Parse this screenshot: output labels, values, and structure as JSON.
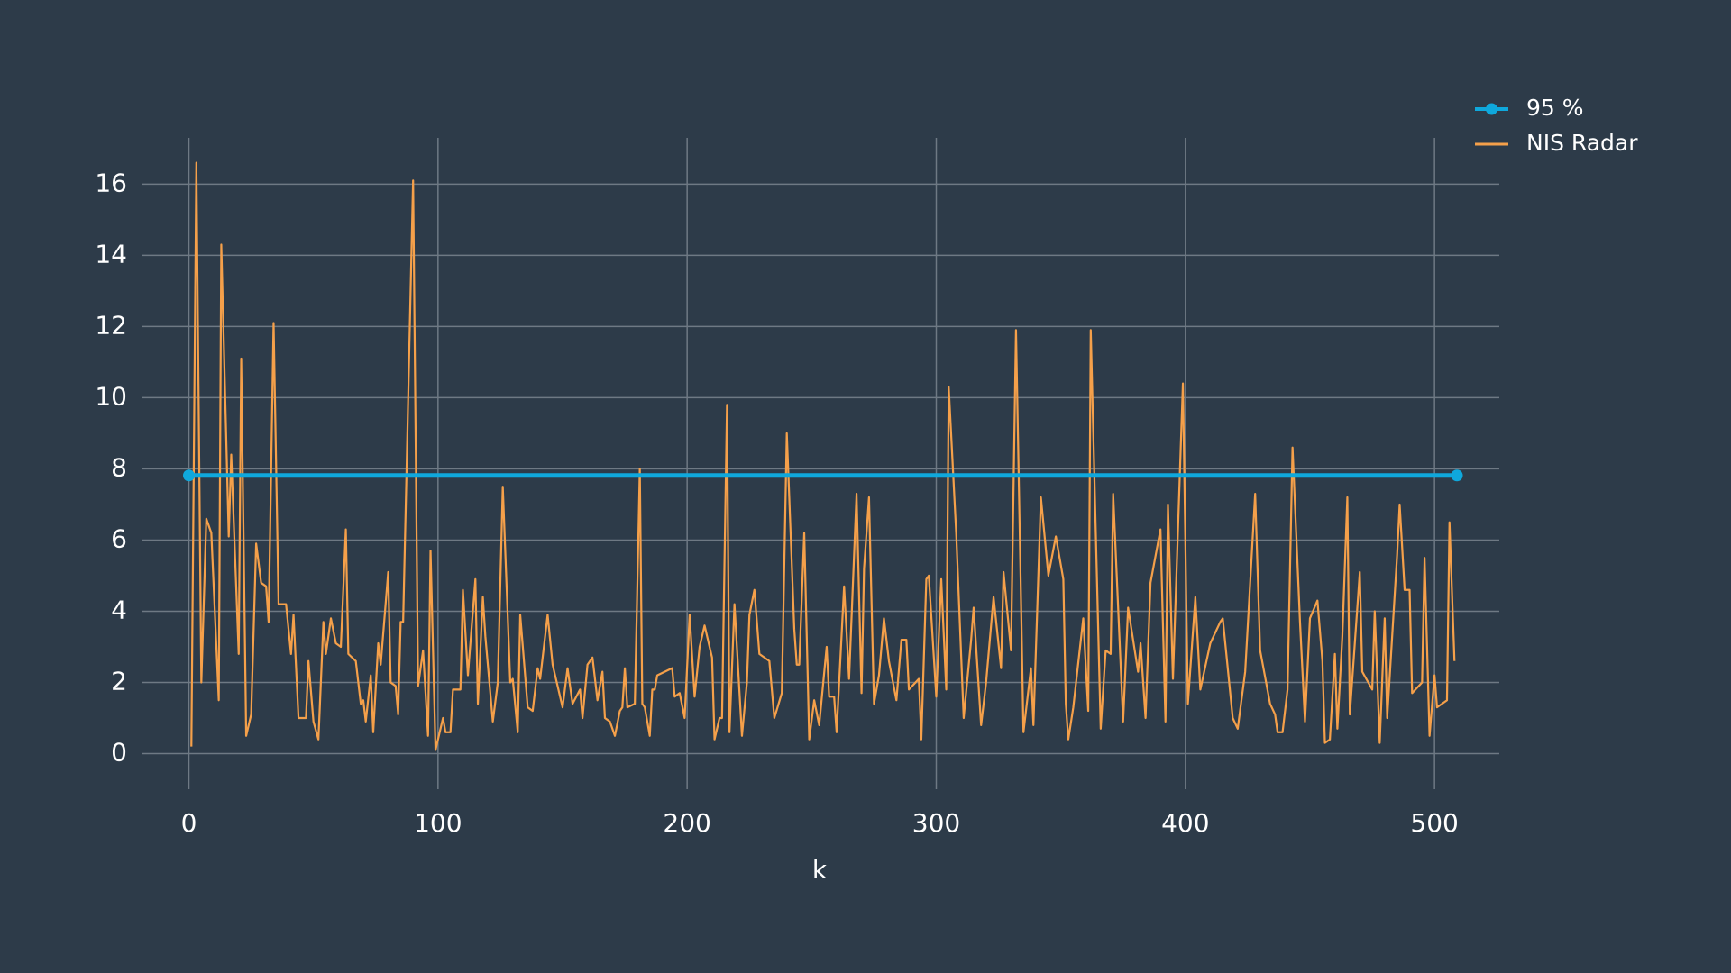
{
  "chart_data": {
    "type": "line",
    "x_label": "k",
    "xlim": [
      -19,
      526
    ],
    "xticks": [
      0,
      100,
      200,
      300,
      400,
      500
    ],
    "ylim": [
      -1.0,
      17.3
    ],
    "yticks": [
      0,
      2,
      4,
      6,
      8,
      10,
      12,
      14,
      16
    ],
    "grid": true,
    "legend": "top-right",
    "series": [
      {
        "name": "95 %",
        "color": "#0fa8dc",
        "markers": true,
        "x": [
          0,
          509
        ],
        "values": [
          7.815,
          7.815
        ]
      },
      {
        "name": "NIS Radar",
        "color": "#f5a04a",
        "markers": false,
        "x": [
          1,
          3,
          5,
          7,
          9,
          12,
          13,
          16,
          17,
          20,
          21,
          23,
          25,
          27,
          29,
          31,
          32,
          34,
          36,
          39,
          41,
          42,
          44,
          47,
          48,
          50,
          52,
          54,
          55,
          57,
          59,
          61,
          63,
          64,
          67,
          69,
          70,
          71,
          73,
          74,
          76,
          77,
          80,
          81,
          83,
          84,
          85,
          86,
          90,
          92,
          94,
          96,
          97,
          99,
          102,
          103,
          105,
          106,
          109,
          110,
          112,
          115,
          116,
          118,
          119,
          122,
          124,
          126,
          129,
          130,
          132,
          133,
          136,
          138,
          140,
          141,
          144,
          146,
          147,
          150,
          152,
          154,
          157,
          158,
          160,
          162,
          164,
          166,
          167,
          169,
          171,
          173,
          174,
          175,
          176,
          179,
          181,
          182,
          183,
          185,
          186,
          187,
          188,
          194,
          195,
          197,
          199,
          201,
          203,
          205,
          207,
          210,
          211,
          213,
          214,
          216,
          217,
          219,
          222,
          224,
          225,
          227,
          229,
          233,
          235,
          238,
          240,
          243,
          244,
          245,
          247,
          249,
          251,
          253,
          256,
          257,
          259,
          260,
          263,
          265,
          268,
          270,
          271,
          273,
          275,
          277,
          279,
          281,
          284,
          286,
          288,
          289,
          293,
          294,
          296,
          297,
          300,
          302,
          304,
          305,
          308,
          311,
          314,
          315,
          318,
          320,
          323,
          326,
          327,
          330,
          332,
          335,
          338,
          339,
          342,
          345,
          348,
          351,
          352,
          353,
          355,
          359,
          361,
          362,
          366,
          368,
          370,
          371,
          375,
          377,
          381,
          382,
          384,
          386,
          390,
          392,
          393,
          395,
          399,
          401,
          404,
          406,
          410,
          414,
          415,
          419,
          421,
          424,
          428,
          430,
          434,
          436,
          437,
          439,
          441,
          443,
          446,
          448,
          450,
          453,
          455,
          456,
          458,
          460,
          461,
          463,
          465,
          466,
          470,
          471,
          475,
          476,
          478,
          480,
          481,
          485,
          486,
          488,
          490,
          491,
          495,
          496,
          498,
          500,
          501,
          505,
          506,
          508
        ],
        "values": [
          0.2,
          16.6,
          2,
          6.6,
          6.2,
          1.5,
          14.3,
          6.1,
          8.4,
          2.8,
          11.1,
          0.5,
          1.1,
          5.9,
          4.8,
          4.7,
          3.7,
          12.1,
          4.2,
          4.2,
          2.8,
          3.9,
          1.0,
          1.0,
          2.6,
          0.9,
          0.4,
          3.7,
          2.8,
          3.8,
          3.1,
          3.0,
          6.3,
          2.8,
          2.6,
          1.4,
          1.5,
          0.9,
          2.2,
          0.6,
          3.1,
          2.5,
          5.1,
          2.0,
          1.9,
          1.1,
          3.7,
          3.7,
          16.1,
          1.9,
          2.9,
          0.5,
          5.7,
          0.1,
          1.0,
          0.6,
          0.6,
          1.8,
          1.8,
          4.6,
          2.2,
          4.9,
          1.4,
          4.4,
          3.3,
          0.9,
          2.0,
          7.5,
          2.0,
          2.1,
          0.6,
          3.9,
          1.3,
          1.2,
          2.4,
          2.1,
          3.9,
          2.5,
          2.2,
          1.3,
          2.4,
          1.4,
          1.8,
          1.0,
          2.5,
          2.7,
          1.5,
          2.3,
          1.0,
          0.9,
          0.5,
          1.2,
          1.3,
          2.4,
          1.3,
          1.4,
          8.0,
          1.4,
          1.3,
          0.5,
          1.8,
          1.8,
          2.2,
          2.4,
          1.6,
          1.7,
          1.0,
          3.9,
          1.6,
          3.0,
          3.6,
          2.7,
          0.4,
          1.0,
          1.0,
          9.8,
          0.6,
          4.2,
          0.5,
          2.0,
          3.9,
          4.6,
          2.8,
          2.6,
          1.0,
          1.7,
          9.0,
          3.5,
          2.5,
          2.5,
          6.2,
          0.4,
          1.5,
          0.8,
          3.0,
          1.6,
          1.6,
          0.6,
          4.7,
          2.1,
          7.3,
          1.7,
          5.2,
          7.2,
          1.4,
          2.2,
          3.8,
          2.6,
          1.5,
          3.2,
          3.2,
          1.8,
          2.1,
          0.4,
          4.9,
          5.0,
          1.6,
          4.9,
          1.8,
          10.3,
          6.2,
          1.0,
          3.2,
          4.1,
          0.8,
          2.0,
          4.4,
          2.4,
          5.1,
          2.9,
          11.9,
          0.6,
          2.4,
          0.8,
          7.2,
          5.0,
          6.1,
          4.9,
          1.4,
          0.4,
          1.3,
          3.8,
          1.2,
          11.9,
          0.7,
          2.9,
          2.8,
          7.3,
          0.9,
          4.1,
          2.3,
          3.1,
          1.0,
          4.8,
          6.3,
          0.9,
          7.0,
          2.1,
          10.4,
          1.4,
          4.4,
          1.8,
          3.1,
          3.7,
          3.8,
          1.0,
          0.7,
          2.3,
          7.3,
          2.9,
          1.4,
          1.1,
          0.6,
          0.6,
          1.8,
          8.6,
          3.7,
          0.9,
          3.8,
          4.3,
          2.6,
          0.3,
          0.4,
          2.8,
          0.7,
          3.3,
          7.2,
          1.1,
          5.1,
          2.3,
          1.8,
          4.0,
          0.3,
          3.8,
          1.0,
          5.6,
          7.0,
          4.6,
          4.6,
          1.7,
          2.0,
          5.5,
          0.5,
          2.2,
          1.3,
          1.5,
          6.5,
          2.6
        ]
      }
    ]
  }
}
